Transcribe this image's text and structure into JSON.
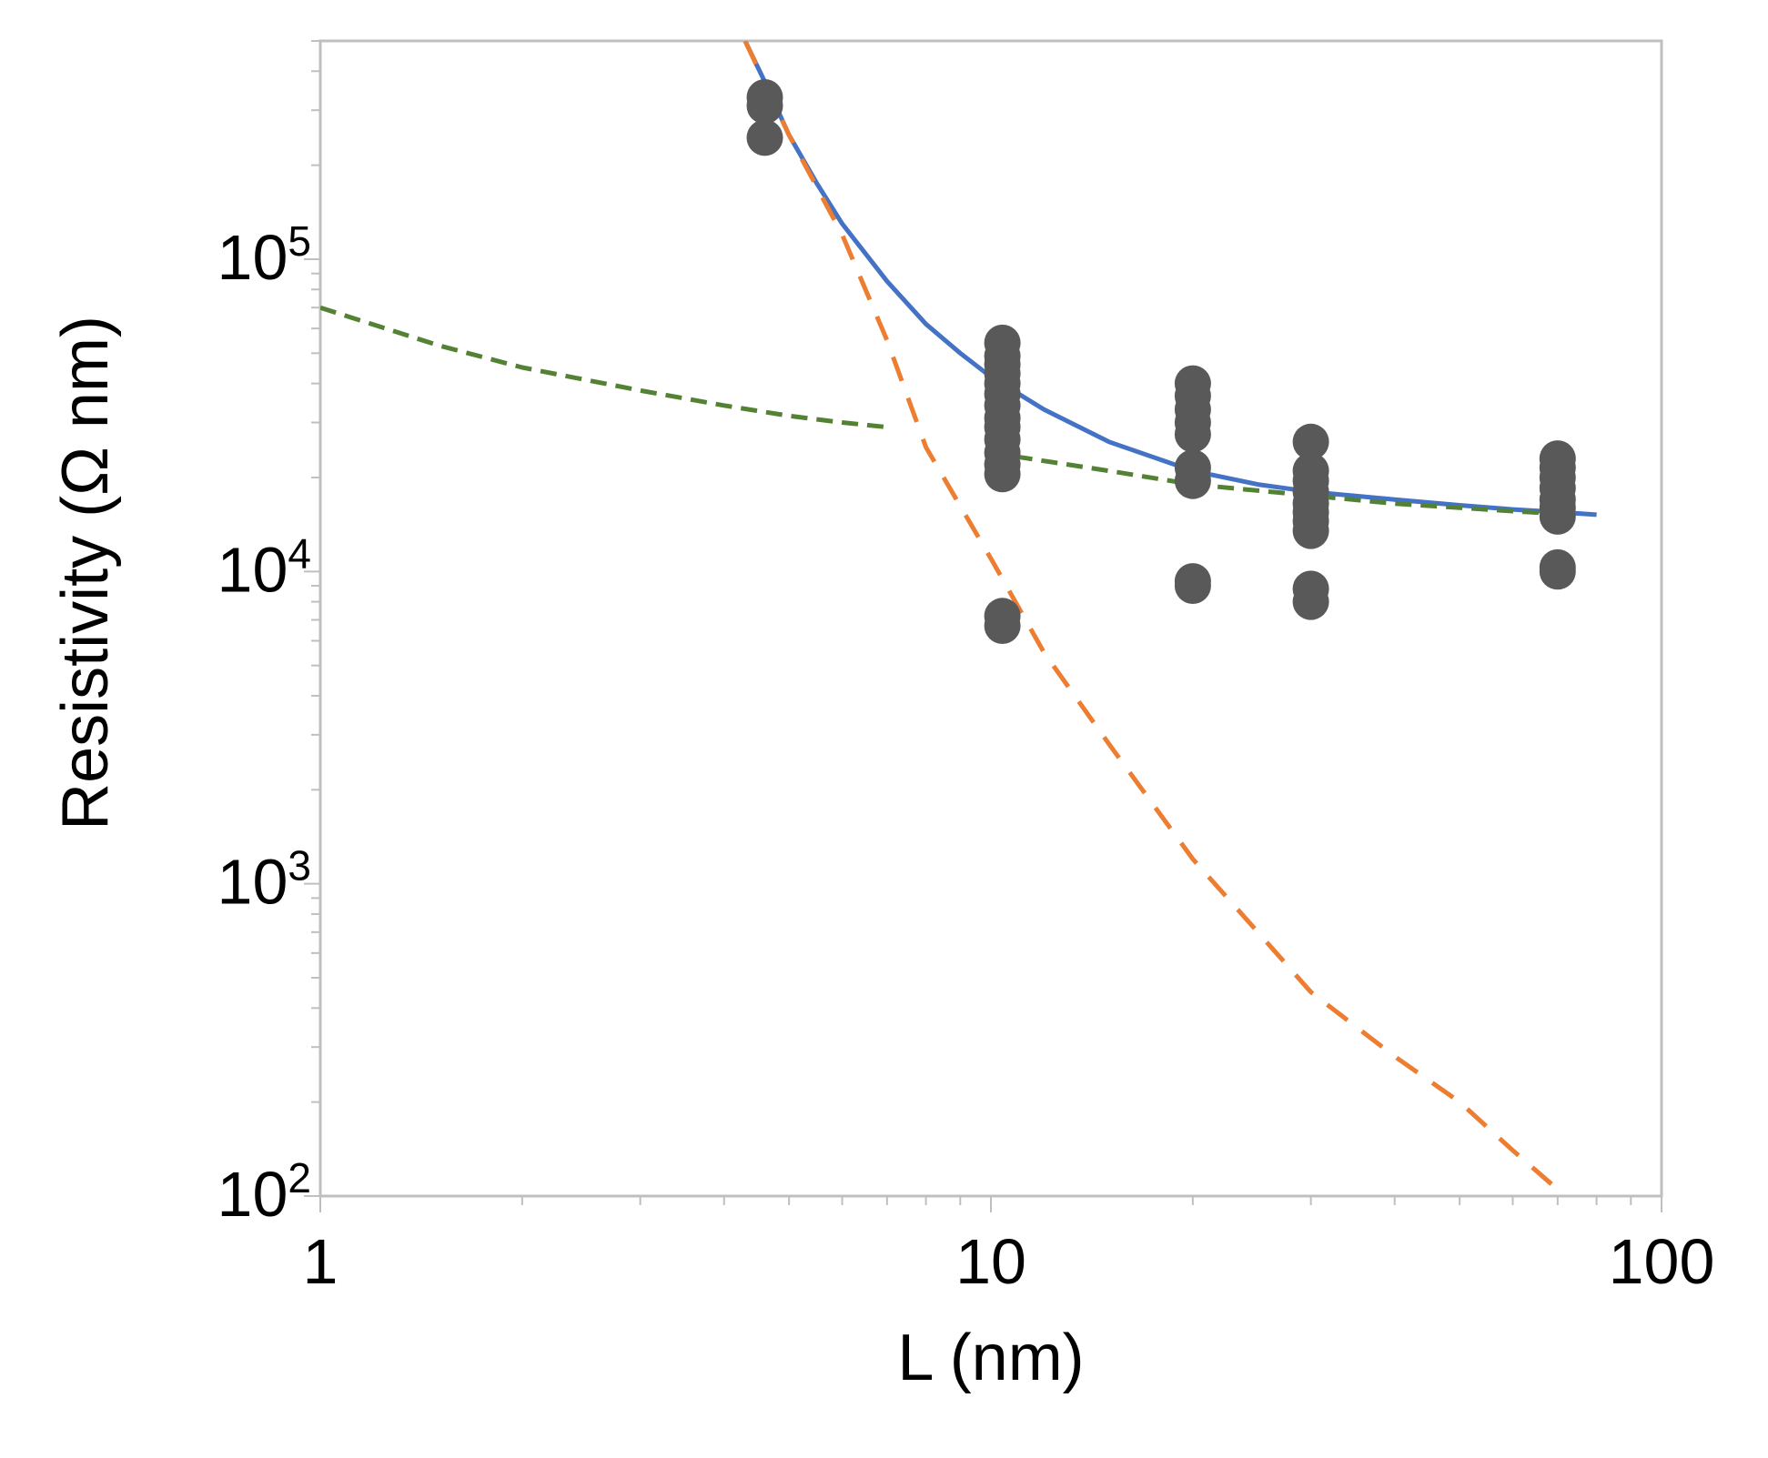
{
  "chart_data": {
    "type": "scatter",
    "title": "",
    "xlabel": "L (nm)",
    "ylabel": "Resistivity (Ω nm)",
    "xscale": "log",
    "yscale": "log",
    "xlim": [
      1,
      100
    ],
    "ylim": [
      100,
      500000
    ],
    "grid": false,
    "legend": "none",
    "x_ticks": [
      {
        "value": 1,
        "label": "1"
      },
      {
        "value": 10,
        "label": "10"
      },
      {
        "value": 100,
        "label": "100"
      }
    ],
    "y_ticks": [
      {
        "value": 100,
        "base": "10",
        "exp": "2"
      },
      {
        "value": 1000,
        "base": "10",
        "exp": "3"
      },
      {
        "value": 10000,
        "base": "10",
        "exp": "4"
      },
      {
        "value": 100000,
        "base": "10",
        "exp": "5"
      }
    ],
    "series": [
      {
        "name": "measured",
        "kind": "points",
        "color": "#595959",
        "points": [
          [
            4.6,
            330000
          ],
          [
            4.6,
            310000
          ],
          [
            4.6,
            245000
          ],
          [
            10.4,
            54000
          ],
          [
            10.4,
            49000
          ],
          [
            10.4,
            46000
          ],
          [
            10.4,
            43000
          ],
          [
            10.4,
            40000
          ],
          [
            10.4,
            37000
          ],
          [
            10.4,
            34000
          ],
          [
            10.4,
            31000
          ],
          [
            10.4,
            29000
          ],
          [
            10.4,
            26500
          ],
          [
            10.4,
            24000
          ],
          [
            10.4,
            22000
          ],
          [
            10.4,
            20500
          ],
          [
            10.4,
            7200
          ],
          [
            10.4,
            6700
          ],
          [
            20,
            40000
          ],
          [
            20,
            36500
          ],
          [
            20,
            33000
          ],
          [
            20,
            30000
          ],
          [
            20,
            27500
          ],
          [
            20,
            21500
          ],
          [
            20,
            19500
          ],
          [
            20,
            9300
          ],
          [
            20,
            9000
          ],
          [
            30,
            26000
          ],
          [
            30,
            21000
          ],
          [
            30,
            19500
          ],
          [
            30,
            18000
          ],
          [
            30,
            16500
          ],
          [
            30,
            15500
          ],
          [
            30,
            14500
          ],
          [
            30,
            13500
          ],
          [
            30,
            8800
          ],
          [
            30,
            8000
          ],
          [
            70,
            23000
          ],
          [
            70,
            21500
          ],
          [
            70,
            20000
          ],
          [
            70,
            18500
          ],
          [
            70,
            17000
          ],
          [
            70,
            16000
          ],
          [
            70,
            15000
          ],
          [
            70,
            10300
          ],
          [
            70,
            10000
          ]
        ]
      },
      {
        "name": "total fit",
        "kind": "line",
        "color": "#4472C4",
        "dash": "solid",
        "points": [
          [
            4.3,
            500000
          ],
          [
            4.6,
            370000
          ],
          [
            5,
            250000
          ],
          [
            5.5,
            175000
          ],
          [
            6,
            130000
          ],
          [
            7,
            85000
          ],
          [
            8,
            62000
          ],
          [
            9,
            50000
          ],
          [
            10,
            42000
          ],
          [
            12,
            33000
          ],
          [
            15,
            26000
          ],
          [
            20,
            21000
          ],
          [
            25,
            19000
          ],
          [
            30,
            18000
          ],
          [
            40,
            17000
          ],
          [
            50,
            16300
          ],
          [
            60,
            15800
          ],
          [
            70,
            15500
          ],
          [
            80,
            15200
          ]
        ]
      },
      {
        "name": "short-length component",
        "kind": "line",
        "color": "#ED7D31",
        "dash": "dashed",
        "points": [
          [
            4.3,
            500000
          ],
          [
            5,
            250000
          ],
          [
            6,
            120000
          ],
          [
            7,
            55000
          ],
          [
            8,
            25000
          ],
          [
            10,
            11000
          ],
          [
            12,
            5500
          ],
          [
            15,
            2800
          ],
          [
            20,
            1200
          ],
          [
            25,
            700
          ],
          [
            30,
            450
          ],
          [
            40,
            280
          ],
          [
            50,
            200
          ],
          [
            60,
            140
          ],
          [
            70,
            105
          ]
        ]
      },
      {
        "name": "long-length component (left)",
        "kind": "line",
        "color": "#548235",
        "dash": "dashed",
        "points": [
          [
            1,
            70000
          ],
          [
            1.5,
            53000
          ],
          [
            2,
            45000
          ],
          [
            3,
            38000
          ],
          [
            4,
            34000
          ],
          [
            5,
            31500
          ],
          [
            6,
            30000
          ],
          [
            7,
            29000
          ]
        ]
      },
      {
        "name": "long-length component (right)",
        "kind": "line",
        "color": "#548235",
        "dash": "dashed",
        "points": [
          [
            10,
            24000
          ],
          [
            15,
            21000
          ],
          [
            20,
            19000
          ],
          [
            30,
            17500
          ],
          [
            40,
            16500
          ],
          [
            50,
            16000
          ],
          [
            60,
            15600
          ],
          [
            70,
            15300
          ]
        ]
      }
    ]
  }
}
